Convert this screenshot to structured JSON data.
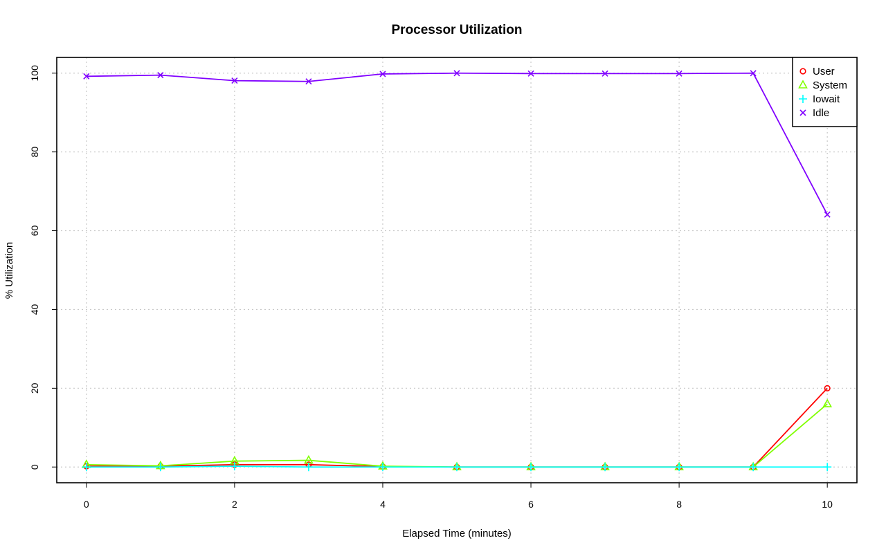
{
  "chart_data": {
    "type": "line",
    "title": "Processor Utilization",
    "xlabel": "Elapsed Time (minutes)",
    "ylabel": "% Utilization",
    "x": [
      0,
      1,
      2,
      3,
      4,
      5,
      6,
      7,
      8,
      9,
      10
    ],
    "xlim": [
      -0.4,
      10.4
    ],
    "ylim": [
      -4,
      104
    ],
    "x_ticks": [
      0,
      2,
      4,
      6,
      8,
      10
    ],
    "y_ticks": [
      0,
      20,
      40,
      60,
      80,
      100
    ],
    "grid": true,
    "legend_position": "top-right",
    "series": [
      {
        "name": "User",
        "color": "#ff0000",
        "marker": "circle",
        "values": [
          0.2,
          0.2,
          0.6,
          0.6,
          0.1,
          0.0,
          0.0,
          0.0,
          0.0,
          0.0,
          20.0
        ]
      },
      {
        "name": "System",
        "color": "#80ff00",
        "marker": "triangle",
        "values": [
          0.6,
          0.3,
          1.5,
          1.7,
          0.2,
          0.0,
          0.0,
          0.0,
          0.0,
          0.0,
          16.0
        ]
      },
      {
        "name": "Iowait",
        "color": "#00ffff",
        "marker": "plus",
        "values": [
          0.0,
          0.0,
          0.2,
          0.0,
          0.0,
          0.0,
          0.0,
          0.0,
          0.0,
          0.0,
          0.0
        ]
      },
      {
        "name": "Idle",
        "color": "#8000ff",
        "marker": "x",
        "values": [
          99.2,
          99.5,
          98.1,
          97.9,
          99.8,
          100.0,
          99.9,
          99.9,
          99.9,
          100.0,
          64.1
        ]
      }
    ]
  }
}
